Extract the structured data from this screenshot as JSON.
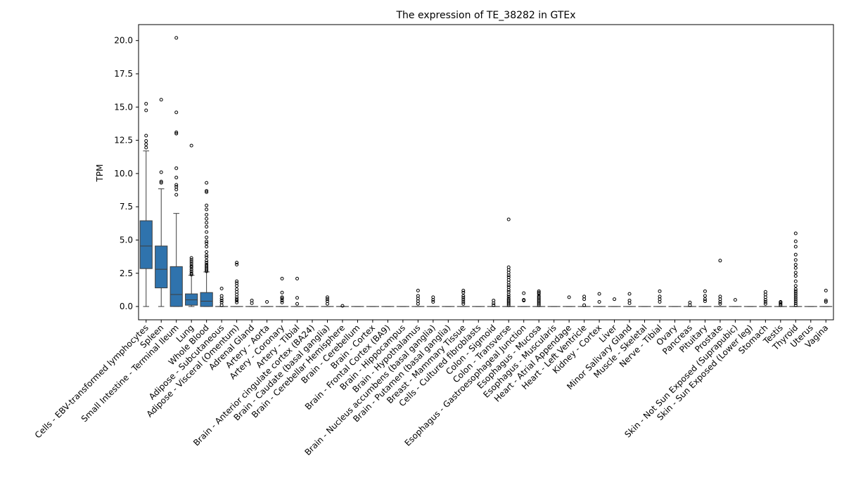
{
  "chart_data": {
    "type": "box",
    "title": "The expression of TE_38282 in GTEx",
    "xlabel": "",
    "ylabel": "TPM",
    "ylim": [
      -1.0,
      21.2
    ],
    "yticks": [
      0.0,
      2.5,
      5.0,
      7.5,
      10.0,
      12.5,
      15.0,
      17.5,
      20.0
    ],
    "ytick_labels": [
      "0.0",
      "2.5",
      "5.0",
      "7.5",
      "10.0",
      "12.5",
      "15.0",
      "17.5",
      "20.0"
    ],
    "box_color": "#2f73ad",
    "categories": [
      "Cells - EBV-transformed lymphocytes",
      "Spleen",
      "Small Intestine - Terminal Ileum",
      "Lung",
      "Whole Blood",
      "Adipose - Subcutaneous",
      "Adipose - Visceral (Omentum)",
      "Adrenal Gland",
      "Artery - Aorta",
      "Artery - Coronary",
      "Artery - Tibial",
      "Brain - Anterior cingulate cortex (BA24)",
      "Brain - Caudate (basal ganglia)",
      "Brain - Cerebellar Hemisphere",
      "Brain - Cerebellum",
      "Brain - Cortex",
      "Brain - Frontal Cortex (BA9)",
      "Brain - Hippocampus",
      "Brain - Hypothalamus",
      "Brain - Nucleus accumbens (basal ganglia)",
      "Brain - Putamen (basal ganglia)",
      "Breast - Mammary Tissue",
      "Cells - Cultured fibroblasts",
      "Colon - Sigmoid",
      "Colon - Transverse",
      "Esophagus - Gastroesophageal Junction",
      "Esophagus - Mucosa",
      "Esophagus - Muscularis",
      "Heart - Atrial Appendage",
      "Heart - Left Ventricle",
      "Kidney - Cortex",
      "Liver",
      "Minor Salivary Gland",
      "Muscle - Skeletal",
      "Nerve - Tibial",
      "Ovary",
      "Pancreas",
      "Pituitary",
      "Prostate",
      "Skin - Not Sun Exposed (Suprapubic)",
      "Skin - Sun Exposed (Lower leg)",
      "Stomach",
      "Testis",
      "Thyroid",
      "Uterus",
      "Vagina"
    ],
    "boxes": [
      {
        "q1": 2.85,
        "median": 4.55,
        "q3": 6.45,
        "whislo": 0.0,
        "whishi": 11.7,
        "fliers": [
          11.95,
          12.2,
          12.45,
          12.85,
          14.75,
          15.25
        ]
      },
      {
        "q1": 1.4,
        "median": 2.8,
        "q3": 4.55,
        "whislo": 0.0,
        "whishi": 8.85,
        "fliers": [
          9.3,
          9.4,
          10.1,
          15.55
        ]
      },
      {
        "q1": 0.0,
        "median": 0.9,
        "q3": 3.0,
        "whislo": 0.0,
        "whishi": 7.0,
        "fliers": [
          8.4,
          8.8,
          9.0,
          9.15,
          9.7,
          10.4,
          13.0,
          13.1,
          14.6,
          20.2
        ]
      },
      {
        "q1": 0.1,
        "median": 0.5,
        "q3": 0.95,
        "whislo": 0.0,
        "whishi": 2.35,
        "fliers": [
          2.4,
          2.5,
          2.65,
          2.8,
          2.95,
          3.05,
          3.2,
          3.35,
          3.5,
          3.65,
          12.1
        ]
      },
      {
        "q1": 0.0,
        "median": 0.4,
        "q3": 1.05,
        "whislo": 0.0,
        "whishi": 2.6,
        "fliers": [
          2.65,
          2.75,
          2.85,
          2.95,
          3.05,
          3.15,
          3.3,
          3.45,
          3.7,
          3.85,
          4.1,
          4.5,
          4.75,
          4.9,
          5.2,
          5.6,
          6.0,
          6.3,
          6.6,
          6.9,
          7.3,
          7.6,
          8.6,
          8.7,
          9.3
        ]
      },
      {
        "q1": 0.0,
        "median": 0.0,
        "q3": 0.0,
        "whislo": 0.0,
        "whishi": 0.0,
        "fliers": [
          0.1,
          0.3,
          0.45,
          0.6,
          0.8,
          1.35
        ]
      },
      {
        "q1": 0.0,
        "median": 0.0,
        "q3": 0.0,
        "whislo": 0.0,
        "whishi": 0.0,
        "fliers": [
          0.3,
          0.45,
          0.55,
          0.7,
          0.9,
          1.1,
          1.3,
          1.55,
          1.75,
          1.9,
          3.15,
          3.3
        ]
      },
      {
        "q1": 0.0,
        "median": 0.0,
        "q3": 0.0,
        "whislo": 0.0,
        "whishi": 0.0,
        "fliers": [
          0.25,
          0.45
        ]
      },
      {
        "q1": 0.0,
        "median": 0.0,
        "q3": 0.0,
        "whislo": 0.0,
        "whishi": 0.0,
        "fliers": [
          0.35
        ]
      },
      {
        "q1": 0.0,
        "median": 0.0,
        "q3": 0.0,
        "whislo": 0.0,
        "whishi": 0.0,
        "fliers": [
          0.3,
          0.45,
          0.6,
          0.7,
          1.05,
          2.1
        ]
      },
      {
        "q1": 0.0,
        "median": 0.0,
        "q3": 0.0,
        "whislo": 0.0,
        "whishi": 0.0,
        "fliers": [
          0.2,
          0.65,
          2.1
        ]
      },
      {
        "q1": 0.0,
        "median": 0.0,
        "q3": 0.0,
        "whislo": 0.0,
        "whishi": 0.0,
        "fliers": []
      },
      {
        "q1": 0.0,
        "median": 0.0,
        "q3": 0.0,
        "whislo": 0.0,
        "whishi": 0.0,
        "fliers": [
          0.2,
          0.4,
          0.55,
          0.7
        ]
      },
      {
        "q1": 0.0,
        "median": 0.0,
        "q3": 0.0,
        "whislo": 0.0,
        "whishi": 0.0,
        "fliers": [
          0.05
        ]
      },
      {
        "q1": 0.0,
        "median": 0.0,
        "q3": 0.0,
        "whislo": 0.0,
        "whishi": 0.0,
        "fliers": []
      },
      {
        "q1": 0.0,
        "median": 0.0,
        "q3": 0.0,
        "whislo": 0.0,
        "whishi": 0.0,
        "fliers": []
      },
      {
        "q1": 0.0,
        "median": 0.0,
        "q3": 0.0,
        "whislo": 0.0,
        "whishi": 0.0,
        "fliers": []
      },
      {
        "q1": 0.0,
        "median": 0.0,
        "q3": 0.0,
        "whislo": 0.0,
        "whishi": 0.0,
        "fliers": []
      },
      {
        "q1": 0.0,
        "median": 0.0,
        "q3": 0.0,
        "whislo": 0.0,
        "whishi": 0.0,
        "fliers": [
          0.2,
          0.4,
          0.6,
          0.8,
          1.2
        ]
      },
      {
        "q1": 0.0,
        "median": 0.0,
        "q3": 0.0,
        "whislo": 0.0,
        "whishi": 0.0,
        "fliers": [
          0.35,
          0.5,
          0.7
        ]
      },
      {
        "q1": 0.0,
        "median": 0.0,
        "q3": 0.0,
        "whislo": 0.0,
        "whishi": 0.0,
        "fliers": []
      },
      {
        "q1": 0.0,
        "median": 0.0,
        "q3": 0.0,
        "whislo": 0.0,
        "whishi": 0.0,
        "fliers": [
          0.2,
          0.35,
          0.5,
          0.65,
          0.8,
          1.05,
          1.2
        ]
      },
      {
        "q1": 0.0,
        "median": 0.0,
        "q3": 0.0,
        "whislo": 0.0,
        "whishi": 0.0,
        "fliers": []
      },
      {
        "q1": 0.0,
        "median": 0.0,
        "q3": 0.0,
        "whislo": 0.0,
        "whishi": 0.0,
        "fliers": [
          0.1,
          0.25,
          0.45
        ]
      },
      {
        "q1": 0.0,
        "median": 0.0,
        "q3": 0.0,
        "whislo": 0.0,
        "whishi": 0.0,
        "fliers": [
          0.1,
          0.2,
          0.3,
          0.4,
          0.5,
          0.6,
          0.75,
          0.9,
          1.1,
          1.25,
          1.45,
          1.6,
          1.8,
          2.0,
          2.2,
          2.35,
          2.55,
          2.75,
          2.95,
          6.55
        ]
      },
      {
        "q1": 0.0,
        "median": 0.0,
        "q3": 0.0,
        "whislo": 0.0,
        "whishi": 0.0,
        "fliers": [
          0.45,
          0.5,
          1.0
        ]
      },
      {
        "q1": 0.0,
        "median": 0.0,
        "q3": 0.0,
        "whislo": 0.0,
        "whishi": 0.0,
        "fliers": [
          0.1,
          0.2,
          0.3,
          0.4,
          0.5,
          0.6,
          0.7,
          0.8,
          0.95,
          1.05,
          1.15
        ]
      },
      {
        "q1": 0.0,
        "median": 0.0,
        "q3": 0.0,
        "whislo": 0.0,
        "whishi": 0.0,
        "fliers": []
      },
      {
        "q1": 0.0,
        "median": 0.0,
        "q3": 0.0,
        "whislo": 0.0,
        "whishi": 0.0,
        "fliers": [
          0.7
        ]
      },
      {
        "q1": 0.0,
        "median": 0.0,
        "q3": 0.0,
        "whislo": 0.0,
        "whishi": 0.0,
        "fliers": [
          0.1,
          0.55,
          0.75
        ]
      },
      {
        "q1": 0.0,
        "median": 0.0,
        "q3": 0.0,
        "whislo": 0.0,
        "whishi": 0.0,
        "fliers": [
          0.35,
          0.95
        ]
      },
      {
        "q1": 0.0,
        "median": 0.0,
        "q3": 0.0,
        "whislo": 0.0,
        "whishi": 0.0,
        "fliers": [
          0.55
        ]
      },
      {
        "q1": 0.0,
        "median": 0.0,
        "q3": 0.0,
        "whislo": 0.0,
        "whishi": 0.0,
        "fliers": [
          0.25,
          0.45,
          0.95
        ]
      },
      {
        "q1": 0.0,
        "median": 0.0,
        "q3": 0.0,
        "whislo": 0.0,
        "whishi": 0.0,
        "fliers": []
      },
      {
        "q1": 0.0,
        "median": 0.0,
        "q3": 0.0,
        "whislo": 0.0,
        "whishi": 0.0,
        "fliers": [
          0.35,
          0.55,
          0.75,
          1.15
        ]
      },
      {
        "q1": 0.0,
        "median": 0.0,
        "q3": 0.0,
        "whislo": 0.0,
        "whishi": 0.0,
        "fliers": []
      },
      {
        "q1": 0.0,
        "median": 0.0,
        "q3": 0.0,
        "whislo": 0.0,
        "whishi": 0.0,
        "fliers": [
          0.1,
          0.3
        ]
      },
      {
        "q1": 0.0,
        "median": 0.0,
        "q3": 0.0,
        "whislo": 0.0,
        "whishi": 0.0,
        "fliers": [
          0.4,
          0.55,
          0.8,
          1.15
        ]
      },
      {
        "q1": 0.0,
        "median": 0.0,
        "q3": 0.0,
        "whislo": 0.0,
        "whishi": 0.0,
        "fliers": [
          0.2,
          0.35,
          0.55,
          0.75,
          3.45
        ]
      },
      {
        "q1": 0.0,
        "median": 0.0,
        "q3": 0.0,
        "whislo": 0.0,
        "whishi": 0.0,
        "fliers": [
          0.5
        ]
      },
      {
        "q1": 0.0,
        "median": 0.0,
        "q3": 0.0,
        "whislo": 0.0,
        "whishi": 0.0,
        "fliers": []
      },
      {
        "q1": 0.0,
        "median": 0.0,
        "q3": 0.0,
        "whislo": 0.0,
        "whishi": 0.0,
        "fliers": [
          0.2,
          0.35,
          0.5,
          0.7,
          0.9,
          1.1
        ]
      },
      {
        "q1": 0.0,
        "median": 0.0,
        "q3": 0.0,
        "whislo": 0.0,
        "whishi": 0.0,
        "fliers": [
          0.1,
          0.2,
          0.3,
          0.35
        ]
      },
      {
        "q1": 0.0,
        "median": 0.0,
        "q3": 0.0,
        "whislo": 0.0,
        "whishi": 0.0,
        "fliers": [
          0.1,
          0.25,
          0.4,
          0.55,
          0.7,
          0.85,
          1.0,
          1.15,
          1.3,
          1.55,
          1.9,
          2.3,
          2.55,
          2.9,
          3.15,
          3.5,
          3.9,
          4.5,
          4.9,
          5.5
        ]
      },
      {
        "q1": 0.0,
        "median": 0.0,
        "q3": 0.0,
        "whislo": 0.0,
        "whishi": 0.0,
        "fliers": []
      },
      {
        "q1": 0.0,
        "median": 0.0,
        "q3": 0.0,
        "whislo": 0.0,
        "whishi": 0.0,
        "fliers": [
          0.35,
          0.45,
          1.2
        ]
      }
    ]
  }
}
